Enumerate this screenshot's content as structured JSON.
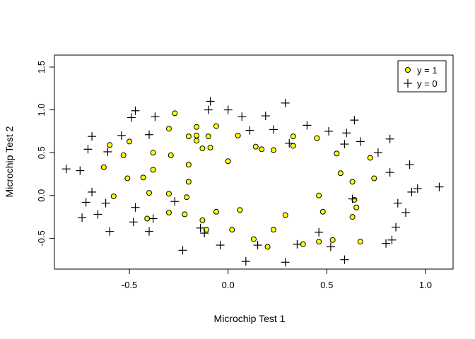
{
  "chart_data": {
    "type": "scatter",
    "xlabel": "Microchip Test 1",
    "ylabel": "Microchip Test 2",
    "xlim": [
      -0.88,
      1.14
    ],
    "ylim": [
      -0.86,
      1.64
    ],
    "x_ticks": [
      -0.5,
      0.0,
      0.5,
      1.0
    ],
    "x_tick_labels": [
      "-0.5",
      "0.0",
      "0.5",
      "1.0"
    ],
    "y_ticks": [
      -0.5,
      0.0,
      0.5,
      1.0,
      1.5
    ],
    "y_tick_labels": [
      "-0.5",
      "0.0",
      "0.5",
      "1.0",
      "1.5"
    ],
    "legend": {
      "position": "top-right",
      "entries": [
        {
          "label": "y = 1",
          "marker": "circle",
          "fill": "#ffff00"
        },
        {
          "label": "y = 0",
          "marker": "plus"
        }
      ]
    },
    "series": [
      {
        "name": "y = 1",
        "marker": "circle",
        "color": "#ffff00",
        "points": [
          [
            -0.27,
            0.96
          ],
          [
            -0.16,
            0.8
          ],
          [
            -0.06,
            0.81
          ],
          [
            -0.3,
            0.78
          ],
          [
            -0.1,
            0.69
          ],
          [
            -0.16,
            0.7
          ],
          [
            -0.2,
            0.69
          ],
          [
            -0.16,
            0.64
          ],
          [
            -0.5,
            0.63
          ],
          [
            -0.6,
            0.59
          ],
          [
            -0.13,
            0.55
          ],
          [
            -0.09,
            0.56
          ],
          [
            0.05,
            0.7
          ],
          [
            0.14,
            0.57
          ],
          [
            0.17,
            0.54
          ],
          [
            0.23,
            0.53
          ],
          [
            0.33,
            0.69
          ],
          [
            0.33,
            0.58
          ],
          [
            0.45,
            0.67
          ],
          [
            0.55,
            0.49
          ],
          [
            0.72,
            0.44
          ],
          [
            -0.38,
            0.5
          ],
          [
            -0.29,
            0.47
          ],
          [
            -0.53,
            0.47
          ],
          [
            0.0,
            0.4
          ],
          [
            -0.63,
            0.33
          ],
          [
            -0.38,
            0.3
          ],
          [
            -0.2,
            0.36
          ],
          [
            -0.43,
            0.21
          ],
          [
            -0.51,
            0.2
          ],
          [
            -0.2,
            0.16
          ],
          [
            0.57,
            0.26
          ],
          [
            0.63,
            0.16
          ],
          [
            -0.58,
            -0.01
          ],
          [
            -0.4,
            0.03
          ],
          [
            -0.3,
            0.02
          ],
          [
            -0.21,
            -0.02
          ],
          [
            0.46,
            0.0
          ],
          [
            0.64,
            -0.05
          ],
          [
            0.65,
            -0.14
          ],
          [
            -0.3,
            -0.2
          ],
          [
            -0.22,
            -0.22
          ],
          [
            -0.41,
            -0.27
          ],
          [
            0.06,
            -0.17
          ],
          [
            -0.06,
            -0.19
          ],
          [
            0.48,
            -0.19
          ],
          [
            0.63,
            -0.25
          ],
          [
            -0.13,
            -0.29
          ],
          [
            -0.11,
            -0.4
          ],
          [
            0.02,
            -0.4
          ],
          [
            0.23,
            -0.4
          ],
          [
            0.29,
            -0.23
          ],
          [
            0.13,
            -0.51
          ],
          [
            0.2,
            -0.6
          ],
          [
            0.38,
            -0.57
          ],
          [
            0.46,
            -0.54
          ],
          [
            0.53,
            -0.52
          ],
          [
            0.67,
            -0.54
          ],
          [
            0.74,
            0.2
          ]
        ]
      },
      {
        "name": "y = 0",
        "marker": "plus",
        "points": [
          [
            -0.09,
            1.1
          ],
          [
            0.29,
            1.08
          ],
          [
            -0.47,
            0.99
          ],
          [
            -0.1,
            1.0
          ],
          [
            0.0,
            1.0
          ],
          [
            -0.49,
            0.91
          ],
          [
            -0.37,
            0.92
          ],
          [
            0.07,
            0.92
          ],
          [
            0.19,
            0.93
          ],
          [
            0.64,
            0.88
          ],
          [
            0.4,
            0.82
          ],
          [
            0.11,
            0.76
          ],
          [
            0.23,
            0.77
          ],
          [
            0.51,
            0.75
          ],
          [
            0.6,
            0.73
          ],
          [
            -0.4,
            0.71
          ],
          [
            -0.54,
            0.7
          ],
          [
            -0.69,
            0.69
          ],
          [
            0.31,
            0.61
          ],
          [
            0.59,
            0.6
          ],
          [
            0.67,
            0.63
          ],
          [
            0.82,
            0.66
          ],
          [
            -0.71,
            0.54
          ],
          [
            -0.61,
            0.51
          ],
          [
            0.76,
            0.5
          ],
          [
            -0.82,
            0.31
          ],
          [
            -0.75,
            0.29
          ],
          [
            0.82,
            0.27
          ],
          [
            0.92,
            0.36
          ],
          [
            0.93,
            0.04
          ],
          [
            0.96,
            0.08
          ],
          [
            1.07,
            0.1
          ],
          [
            -0.69,
            0.04
          ],
          [
            -0.72,
            -0.08
          ],
          [
            -0.62,
            -0.09
          ],
          [
            0.63,
            -0.04
          ],
          [
            0.86,
            -0.09
          ],
          [
            -0.47,
            -0.14
          ],
          [
            -0.27,
            -0.07
          ],
          [
            0.9,
            -0.2
          ],
          [
            -0.66,
            -0.22
          ],
          [
            -0.74,
            -0.26
          ],
          [
            -0.38,
            -0.27
          ],
          [
            -0.48,
            -0.31
          ],
          [
            0.85,
            -0.37
          ],
          [
            -0.6,
            -0.42
          ],
          [
            -0.4,
            -0.42
          ],
          [
            -0.14,
            -0.38
          ],
          [
            -0.12,
            -0.44
          ],
          [
            0.46,
            -0.43
          ],
          [
            0.83,
            -0.52
          ],
          [
            0.8,
            -0.56
          ],
          [
            -0.23,
            -0.64
          ],
          [
            -0.04,
            -0.58
          ],
          [
            0.15,
            -0.58
          ],
          [
            0.35,
            -0.57
          ],
          [
            0.52,
            -0.6
          ],
          [
            0.59,
            -0.75
          ],
          [
            0.09,
            -0.77
          ],
          [
            0.29,
            -0.78
          ]
        ]
      }
    ]
  }
}
